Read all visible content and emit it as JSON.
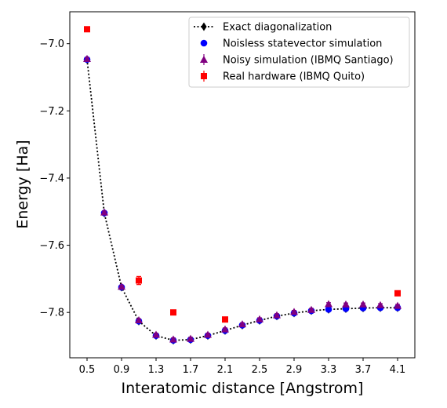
{
  "chart_data": {
    "type": "line",
    "title": "",
    "xlabel": "Interatomic distance [Angstrom]",
    "ylabel": "Energy [Ha]",
    "xlim": [
      0.3,
      4.3
    ],
    "ylim": [
      -7.935,
      -6.905
    ],
    "xticks": [
      0.5,
      0.9,
      1.3,
      1.7,
      2.1,
      2.5,
      2.9,
      3.3,
      3.7,
      4.1
    ],
    "xtick_labels": [
      "0.5",
      "0.9",
      "1.3",
      "1.7",
      "2.1",
      "2.5",
      "2.9",
      "3.3",
      "3.7",
      "4.1"
    ],
    "yticks": [
      -7.0,
      -7.2,
      -7.4,
      -7.6,
      -7.8
    ],
    "ytick_labels": [
      "−7.0",
      "−7.2",
      "−7.4",
      "−7.6",
      "−7.8"
    ],
    "x": [
      0.5,
      0.7,
      0.9,
      1.1,
      1.3,
      1.5,
      1.7,
      1.9,
      2.1,
      2.3,
      2.5,
      2.7,
      2.9,
      3.1,
      3.3,
      3.5,
      3.7,
      3.9,
      4.1
    ],
    "legend_position": "top-right",
    "grid": false,
    "series": [
      {
        "name": "Exact diagonalization",
        "style": "dotted-line-diamond",
        "color": "#000000",
        "x": [
          0.5,
          0.7,
          0.9,
          1.1,
          1.3,
          1.5,
          1.7,
          1.9,
          2.1,
          2.3,
          2.5,
          2.7,
          2.9,
          3.1,
          3.3,
          3.5,
          3.7,
          3.9,
          4.1
        ],
        "values": [
          -7.047,
          -7.504,
          -7.725,
          -7.826,
          -7.869,
          -7.883,
          -7.881,
          -7.869,
          -7.854,
          -7.838,
          -7.824,
          -7.811,
          -7.802,
          -7.795,
          -7.791,
          -7.789,
          -7.787,
          -7.786,
          -7.786
        ]
      },
      {
        "name": "Noisless statevector simulation",
        "style": "circle",
        "color": "#0000ff",
        "x": [
          0.5,
          0.7,
          0.9,
          1.1,
          1.3,
          1.5,
          1.7,
          1.9,
          2.1,
          2.3,
          2.5,
          2.7,
          2.9,
          3.1,
          3.3,
          3.5,
          3.7,
          3.9,
          4.1
        ],
        "values": [
          -7.047,
          -7.504,
          -7.725,
          -7.826,
          -7.869,
          -7.883,
          -7.881,
          -7.869,
          -7.854,
          -7.838,
          -7.824,
          -7.811,
          -7.802,
          -7.795,
          -7.791,
          -7.789,
          -7.787,
          -7.786,
          -7.786
        ]
      },
      {
        "name": "Noisy simulation (IBMQ Santiago)",
        "style": "triangle-errorbar",
        "color": "#800080",
        "x": [
          0.5,
          0.7,
          0.9,
          1.1,
          1.3,
          1.5,
          1.7,
          1.9,
          2.1,
          2.3,
          2.5,
          2.7,
          2.9,
          3.1,
          3.3,
          3.5,
          3.7,
          3.9,
          4.1
        ],
        "values": [
          -7.045,
          -7.502,
          -7.723,
          -7.823,
          -7.866,
          -7.88,
          -7.878,
          -7.866,
          -7.85,
          -7.835,
          -7.82,
          -7.808,
          -7.798,
          -7.792,
          -7.775,
          -7.776,
          -7.776,
          -7.778,
          -7.78
        ],
        "errors": [
          0.004,
          0.004,
          0.004,
          0.004,
          0.004,
          0.004,
          0.004,
          0.004,
          0.004,
          0.004,
          0.004,
          0.004,
          0.004,
          0.004,
          0.004,
          0.004,
          0.004,
          0.004,
          0.004
        ]
      },
      {
        "name": "Real hardware (IBMQ Quito)",
        "style": "square-errorbar",
        "color": "#ff0000",
        "x": [
          0.5,
          1.1,
          1.5,
          2.1,
          4.1
        ],
        "values": [
          -6.957,
          -7.705,
          -7.8,
          -7.821,
          -7.743
        ],
        "errors": [
          0.003,
          0.012,
          0.003,
          0.003,
          0.003
        ]
      }
    ]
  }
}
